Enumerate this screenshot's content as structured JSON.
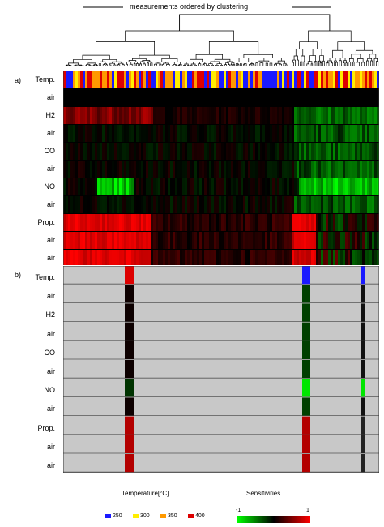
{
  "title": "measurements ordered by clustering",
  "panel_a_label": "a)",
  "panel_b_label": "b)",
  "row_labels": [
    "Temp.",
    "air",
    "H2",
    "air",
    "CO",
    "air",
    "NO",
    "air",
    "Prop.",
    "air",
    "air"
  ],
  "legend": {
    "temperature_title": "Temperature[°C]",
    "temperature_items": [
      {
        "label": "250",
        "color": "#1a1aff"
      },
      {
        "label": "300",
        "color": "#ffee00"
      },
      {
        "label": "350",
        "color": "#ff9900"
      },
      {
        "label": "400",
        "color": "#dd0000"
      }
    ],
    "sensitivity_title": "Sensitivities",
    "sensitivity_min": "-1",
    "sensitivity_max": "1"
  },
  "colors": {
    "negative": "#00ff00",
    "zero": "#000000",
    "positive": "#ff0000",
    "masked": "#c8c8c8"
  }
}
